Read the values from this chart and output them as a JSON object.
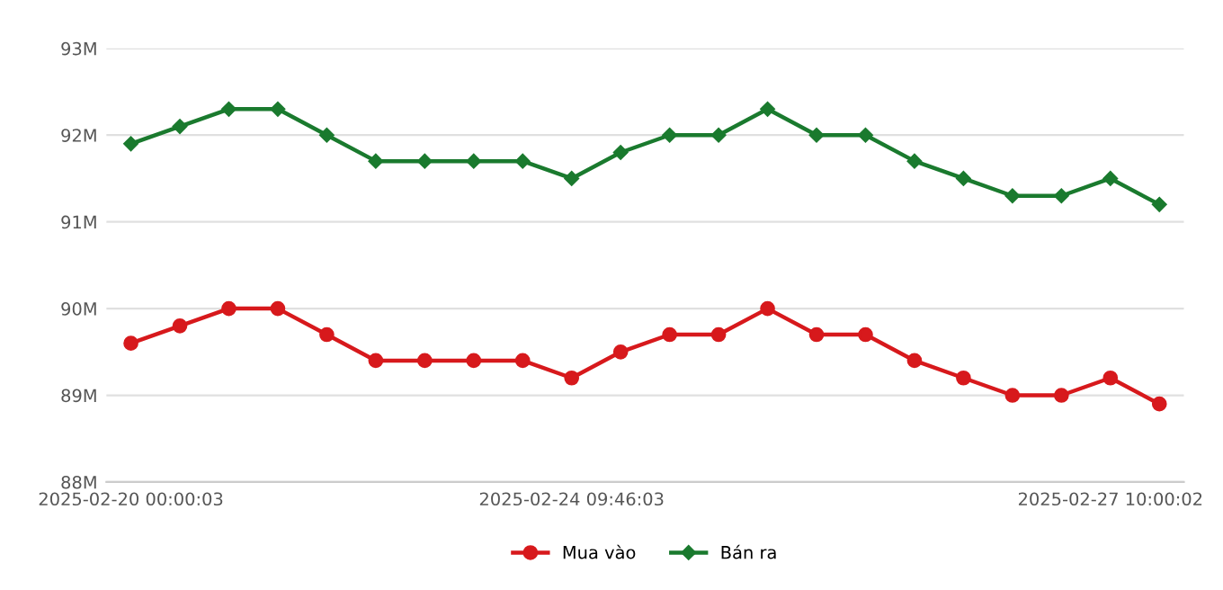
{
  "chart_data": {
    "type": "line",
    "categories": [
      "2025-02-20 00:00:03",
      null,
      null,
      null,
      null,
      null,
      null,
      null,
      null,
      "2025-02-24 09:46:03",
      null,
      null,
      null,
      null,
      null,
      null,
      null,
      null,
      null,
      null,
      "2025-02-27 10:00:02",
      null
    ],
    "series": [
      {
        "name": "Mua vào",
        "color": "#d7191c",
        "marker": "circle",
        "values": [
          89.6,
          89.8,
          90.0,
          90.0,
          89.7,
          89.4,
          89.4,
          89.4,
          89.4,
          89.2,
          89.5,
          89.7,
          89.7,
          90.0,
          89.7,
          89.7,
          89.4,
          89.2,
          89.0,
          89.0,
          89.2,
          88.9
        ]
      },
      {
        "name": "Bán ra",
        "color": "#1a7a2e",
        "marker": "diamond",
        "values": [
          91.9,
          92.1,
          92.3,
          92.3,
          92.0,
          91.7,
          91.7,
          91.7,
          91.7,
          91.5,
          91.8,
          92.0,
          92.0,
          92.3,
          92.0,
          92.0,
          91.7,
          91.5,
          91.3,
          91.3,
          91.5,
          91.2
        ]
      }
    ],
    "ylim": [
      88,
      93
    ],
    "yticks": [
      {
        "value": 88,
        "label": "88M"
      },
      {
        "value": 89,
        "label": "89M"
      },
      {
        "value": 90,
        "label": "90M"
      },
      {
        "value": 91,
        "label": "91M"
      },
      {
        "value": 92,
        "label": "92M"
      },
      {
        "value": 93,
        "label": "93M"
      }
    ],
    "grid": "y",
    "legend": "bottom",
    "line_style": "solid"
  }
}
